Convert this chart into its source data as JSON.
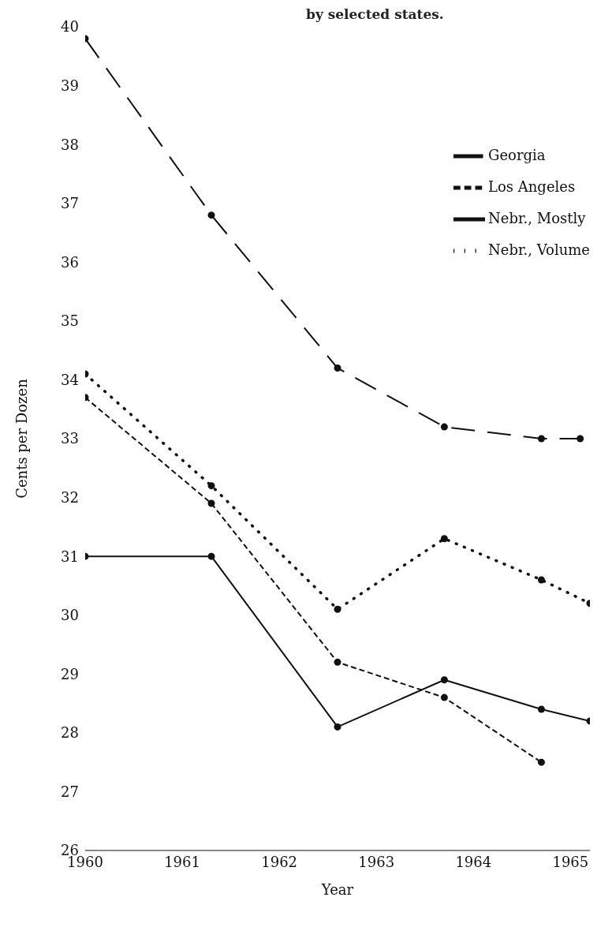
{
  "chart_data": {
    "type": "line",
    "title": "by selected states.",
    "xlabel": "Year",
    "ylabel": "Cents per Dozen",
    "xlim": [
      1960,
      1965.2
    ],
    "xticks": [
      1960,
      1961,
      1962,
      1963,
      1964,
      1965
    ],
    "ylim": [
      26,
      40
    ],
    "yticks": [
      26,
      27,
      28,
      29,
      30,
      31,
      32,
      33,
      34,
      35,
      36,
      37,
      38,
      39,
      40
    ],
    "marker": "circle",
    "legend": "top right",
    "series": [
      {
        "name": "Georgia",
        "color": "#111111",
        "line_style": "dashed",
        "x": [
          1960,
          1961.3,
          1962.6,
          1963.7,
          1964.7,
          1965.1
        ],
        "values": [
          39.8,
          36.8,
          34.2,
          33.2,
          33.0,
          33.0
        ]
      },
      {
        "name": "Los Angeles",
        "color": "#111111",
        "line_style": "dashed",
        "x": [
          1960,
          1961.3,
          1962.6,
          1963.7,
          1964.7
        ],
        "values": [
          33.7,
          31.9,
          29.2,
          28.6,
          27.5
        ]
      },
      {
        "name": "Nebr., Volume",
        "color": "#111111",
        "line_style": "dotted",
        "x": [
          1960,
          1961.3,
          1962.6,
          1963.7,
          1964.7,
          1965.2
        ],
        "values": [
          34.1,
          32.2,
          30.1,
          31.3,
          30.6,
          30.2
        ]
      },
      {
        "name": "Nebr., Mostly",
        "color": "#111111",
        "line_style": "solid",
        "x": [
          1960,
          1961.3,
          1962.6,
          1963.7,
          1964.7,
          1965.2
        ],
        "values": [
          31.0,
          31.0,
          28.1,
          28.9,
          28.4,
          28.2
        ]
      }
    ]
  }
}
